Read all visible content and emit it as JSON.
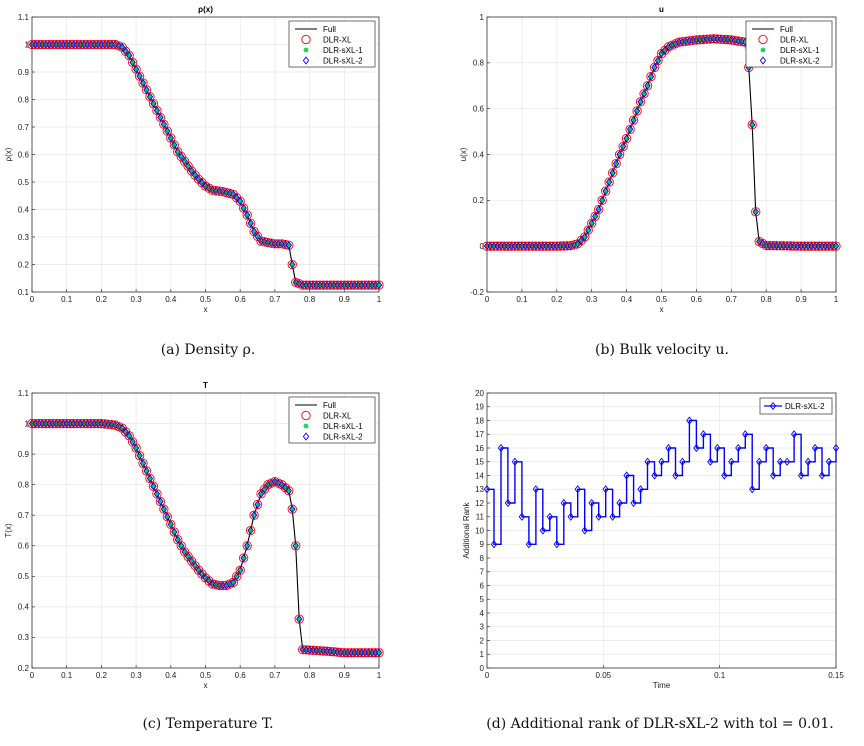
{
  "chart_data": [
    {
      "type": "line",
      "title": "ρ(x)",
      "xlabel": "x",
      "ylabel": "ρ(x)",
      "xlim": [
        0,
        1
      ],
      "ylim": [
        0.1,
        1.1
      ],
      "xticks": [
        "0",
        "0.1",
        "0.2",
        "0.3",
        "0.4",
        "0.5",
        "0.6",
        "0.7",
        "0.8",
        "0.9",
        "1"
      ],
      "yticks": [
        "0.1",
        "0.2",
        "0.3",
        "0.4",
        "0.5",
        "0.6",
        "0.7",
        "0.8",
        "0.9",
        "1",
        "1.1"
      ],
      "grid": true,
      "legend_placement": "top-right",
      "series": [
        {
          "name": "Full",
          "style": "line",
          "color": "#000000"
        },
        {
          "name": "DLR-XL",
          "style": "circle",
          "color": "#ff0000"
        },
        {
          "name": "DLR-sXL-1",
          "style": "star",
          "color": "#00cc44"
        },
        {
          "name": "DLR-sXL-2",
          "style": "diamond",
          "color": "#0000ff"
        }
      ],
      "x": [
        0,
        0.05,
        0.1,
        0.15,
        0.2,
        0.24,
        0.26,
        0.28,
        0.3,
        0.32,
        0.34,
        0.36,
        0.38,
        0.4,
        0.42,
        0.44,
        0.46,
        0.48,
        0.5,
        0.52,
        0.55,
        0.58,
        0.6,
        0.62,
        0.64,
        0.66,
        0.7,
        0.72,
        0.74,
        0.75,
        0.76,
        0.78,
        0.85,
        0.9,
        1.0
      ],
      "y": [
        1,
        1,
        1,
        1,
        1,
        1,
        0.99,
        0.96,
        0.91,
        0.86,
        0.81,
        0.76,
        0.71,
        0.66,
        0.61,
        0.575,
        0.54,
        0.51,
        0.485,
        0.47,
        0.465,
        0.455,
        0.43,
        0.38,
        0.32,
        0.285,
        0.275,
        0.275,
        0.27,
        0.2,
        0.135,
        0.125,
        0.125,
        0.125,
        0.125
      ],
      "caption": "(a) Density ρ."
    },
    {
      "type": "line",
      "title": "u",
      "xlabel": "x",
      "ylabel": "u(x)",
      "xlim": [
        0,
        1
      ],
      "ylim": [
        -0.2,
        1
      ],
      "xticks": [
        "0",
        "0.1",
        "0.2",
        "0.3",
        "0.4",
        "0.5",
        "0.6",
        "0.7",
        "0.8",
        "0.9",
        "1"
      ],
      "yticks": [
        "-0.2",
        "0",
        "0.2",
        "0.4",
        "0.6",
        "0.8",
        "1"
      ],
      "grid": true,
      "legend_placement": "top-right",
      "series": [
        {
          "name": "Full",
          "style": "line",
          "color": "#000000"
        },
        {
          "name": "DLR-XL",
          "style": "circle",
          "color": "#ff0000"
        },
        {
          "name": "DLR-sXL-1",
          "style": "star",
          "color": "#00cc44"
        },
        {
          "name": "DLR-sXL-2",
          "style": "diamond",
          "color": "#0000ff"
        }
      ],
      "x": [
        0,
        0.1,
        0.2,
        0.24,
        0.26,
        0.28,
        0.3,
        0.32,
        0.34,
        0.36,
        0.38,
        0.4,
        0.42,
        0.44,
        0.46,
        0.48,
        0.5,
        0.52,
        0.55,
        0.6,
        0.65,
        0.7,
        0.72,
        0.74,
        0.75,
        0.76,
        0.77,
        0.78,
        0.8,
        0.9,
        1.0
      ],
      "y": [
        0,
        0,
        0,
        0.002,
        0.01,
        0.04,
        0.1,
        0.16,
        0.24,
        0.32,
        0.4,
        0.47,
        0.55,
        0.63,
        0.7,
        0.78,
        0.84,
        0.87,
        0.89,
        0.9,
        0.905,
        0.9,
        0.895,
        0.89,
        0.78,
        0.53,
        0.15,
        0.02,
        0.003,
        0,
        0
      ],
      "caption": "(b) Bulk velocity u."
    },
    {
      "type": "line",
      "title": "T",
      "xlabel": "x",
      "ylabel": "T(x)",
      "xlim": [
        0,
        1
      ],
      "ylim": [
        0.2,
        1.1
      ],
      "xticks": [
        "0",
        "0.1",
        "0.2",
        "0.3",
        "0.4",
        "0.5",
        "0.6",
        "0.7",
        "0.8",
        "0.9",
        "1"
      ],
      "yticks": [
        "0.2",
        "0.3",
        "0.4",
        "0.5",
        "0.6",
        "0.7",
        "0.8",
        "0.9",
        "1",
        "1.1"
      ],
      "grid": true,
      "legend_placement": "top-right",
      "series": [
        {
          "name": "Full",
          "style": "line",
          "color": "#000000"
        },
        {
          "name": "DLR-XL",
          "style": "circle",
          "color": "#ff0000"
        },
        {
          "name": "DLR-sXL-1",
          "style": "star",
          "color": "#00cc44"
        },
        {
          "name": "DLR-sXL-2",
          "style": "diamond",
          "color": "#0000ff"
        }
      ],
      "x": [
        0,
        0.1,
        0.2,
        0.24,
        0.26,
        0.28,
        0.3,
        0.32,
        0.34,
        0.36,
        0.38,
        0.4,
        0.42,
        0.44,
        0.46,
        0.48,
        0.5,
        0.52,
        0.54,
        0.56,
        0.58,
        0.6,
        0.62,
        0.64,
        0.66,
        0.68,
        0.7,
        0.72,
        0.74,
        0.75,
        0.76,
        0.77,
        0.78,
        0.85,
        0.9,
        1.0
      ],
      "y": [
        1,
        1,
        1,
        0.995,
        0.985,
        0.96,
        0.92,
        0.87,
        0.82,
        0.77,
        0.72,
        0.67,
        0.62,
        0.58,
        0.55,
        0.52,
        0.495,
        0.475,
        0.47,
        0.47,
        0.48,
        0.52,
        0.6,
        0.7,
        0.77,
        0.8,
        0.81,
        0.8,
        0.78,
        0.72,
        0.6,
        0.36,
        0.26,
        0.255,
        0.25,
        0.25
      ],
      "caption": "(c) Temperature T."
    },
    {
      "type": "line",
      "title": "",
      "xlabel": "Time",
      "ylabel": "Additional Rank",
      "xlim": [
        0,
        0.15
      ],
      "ylim": [
        0,
        20
      ],
      "xticks": [
        "0",
        "0.05",
        "0.1",
        "0.15"
      ],
      "yticks": [
        "0",
        "1",
        "2",
        "3",
        "4",
        "5",
        "6",
        "7",
        "8",
        "9",
        "10",
        "11",
        "12",
        "13",
        "14",
        "15",
        "16",
        "17",
        "18",
        "19",
        "20"
      ],
      "grid": true,
      "legend_placement": "top-right",
      "series": [
        {
          "name": "DLR-sXL-2",
          "style": "diamond-line",
          "color": "#0000ff"
        }
      ],
      "x": [
        0,
        0.003,
        0.006,
        0.009,
        0.012,
        0.015,
        0.018,
        0.021,
        0.024,
        0.027,
        0.03,
        0.033,
        0.036,
        0.039,
        0.042,
        0.045,
        0.048,
        0.051,
        0.054,
        0.057,
        0.06,
        0.063,
        0.066,
        0.069,
        0.072,
        0.075,
        0.078,
        0.081,
        0.084,
        0.087,
        0.09,
        0.093,
        0.096,
        0.099,
        0.102,
        0.105,
        0.108,
        0.111,
        0.114,
        0.117,
        0.12,
        0.123,
        0.126,
        0.129,
        0.132,
        0.135,
        0.138,
        0.141,
        0.144,
        0.147,
        0.15
      ],
      "y": [
        13,
        9,
        16,
        12,
        15,
        11,
        9,
        13,
        10,
        11,
        9,
        12,
        11,
        13,
        10,
        12,
        11,
        13,
        11,
        12,
        14,
        12,
        13,
        15,
        14,
        15,
        16,
        14,
        15,
        18,
        16,
        17,
        15,
        16,
        14,
        15,
        16,
        17,
        13,
        15,
        16,
        14,
        15,
        15,
        17,
        14,
        15,
        16,
        14,
        15,
        16
      ],
      "caption": "(d) Additional rank of DLR-sXL-2 with tol = 0.01."
    }
  ]
}
